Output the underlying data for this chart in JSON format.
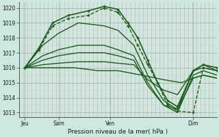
{
  "background_color": "#cce8e0",
  "line_color": "#1a5c1a",
  "title": "Pression niveau de la mer( hPa )",
  "xlabel_ticks": [
    "Jeu",
    "Sam",
    "Ven",
    "Dim"
  ],
  "xlabel_tick_pos": [
    0.03,
    0.2,
    0.46,
    0.88
  ],
  "ylim": [
    1012.7,
    1020.4
  ],
  "yticks": [
    1013,
    1014,
    1015,
    1016,
    1017,
    1018,
    1019,
    1020
  ],
  "figsize": [
    3.2,
    2.0
  ],
  "dpi": 100,
  "lines": [
    {
      "x": [
        0.03,
        0.1,
        0.17,
        0.25,
        0.35,
        0.43,
        0.5,
        0.55,
        0.6,
        0.65,
        0.7,
        0.75,
        0.8,
        0.88,
        0.93,
        1.0
      ],
      "y": [
        1016.0,
        1017.2,
        1018.8,
        1019.3,
        1019.5,
        1020.0,
        1019.7,
        1018.8,
        1017.5,
        1016.2,
        1015.0,
        1013.5,
        1013.1,
        1013.0,
        1016.0,
        1015.8
      ],
      "marker": true,
      "dashed": true,
      "lw": 1.0
    },
    {
      "x": [
        0.03,
        0.12,
        0.2,
        0.3,
        0.43,
        0.5,
        0.58,
        0.65,
        0.73,
        0.8,
        0.88,
        0.93,
        1.0
      ],
      "y": [
        1016.0,
        1017.5,
        1018.3,
        1019.0,
        1018.8,
        1018.5,
        1017.5,
        1015.5,
        1013.8,
        1013.2,
        1015.8,
        1016.2,
        1015.8
      ],
      "marker": false,
      "dashed": false,
      "lw": 1.0
    },
    {
      "x": [
        0.03,
        0.12,
        0.2,
        0.3,
        0.43,
        0.5,
        0.58,
        0.65,
        0.73,
        0.8,
        0.88,
        0.93,
        1.0
      ],
      "y": [
        1016.0,
        1016.8,
        1017.2,
        1017.5,
        1017.5,
        1017.2,
        1016.8,
        1015.0,
        1013.5,
        1013.0,
        1015.5,
        1015.8,
        1015.5
      ],
      "marker": false,
      "dashed": false,
      "lw": 1.0
    },
    {
      "x": [
        0.03,
        0.12,
        0.2,
        0.3,
        0.43,
        0.5,
        0.58,
        0.65,
        0.73,
        0.8,
        0.88,
        0.93,
        1.0
      ],
      "y": [
        1016.0,
        1016.5,
        1016.8,
        1017.0,
        1017.0,
        1016.8,
        1016.5,
        1014.8,
        1013.5,
        1013.2,
        1015.3,
        1015.5,
        1015.3
      ],
      "marker": false,
      "dashed": false,
      "lw": 1.0
    },
    {
      "x": [
        0.03,
        0.12,
        0.2,
        0.3,
        0.43,
        0.5,
        0.58,
        0.65,
        0.73,
        0.8,
        0.88,
        0.93,
        1.0
      ],
      "y": [
        1016.0,
        1016.2,
        1016.3,
        1016.4,
        1016.4,
        1016.3,
        1016.2,
        1015.2,
        1014.5,
        1014.2,
        1015.8,
        1016.0,
        1015.8
      ],
      "marker": false,
      "dashed": false,
      "lw": 1.0
    },
    {
      "x": [
        0.03,
        0.15,
        0.28,
        0.4,
        0.5,
        0.62,
        0.73,
        0.82,
        0.88,
        0.93,
        1.0
      ],
      "y": [
        1016.0,
        1016.0,
        1016.0,
        1015.8,
        1015.8,
        1015.5,
        1015.2,
        1015.0,
        1015.3,
        1015.5,
        1015.3
      ],
      "marker": false,
      "dashed": false,
      "lw": 1.0
    },
    {
      "x": [
        0.03,
        0.1,
        0.17,
        0.25,
        0.35,
        0.43,
        0.5,
        0.55,
        0.6,
        0.65,
        0.7,
        0.75,
        0.8,
        0.88,
        0.93,
        1.0
      ],
      "y": [
        1016.0,
        1017.3,
        1019.0,
        1019.5,
        1019.8,
        1020.1,
        1019.9,
        1019.0,
        1018.0,
        1016.5,
        1015.0,
        1013.8,
        1013.4,
        1015.8,
        1016.2,
        1016.0
      ],
      "marker": true,
      "dashed": false,
      "lw": 1.2
    }
  ]
}
